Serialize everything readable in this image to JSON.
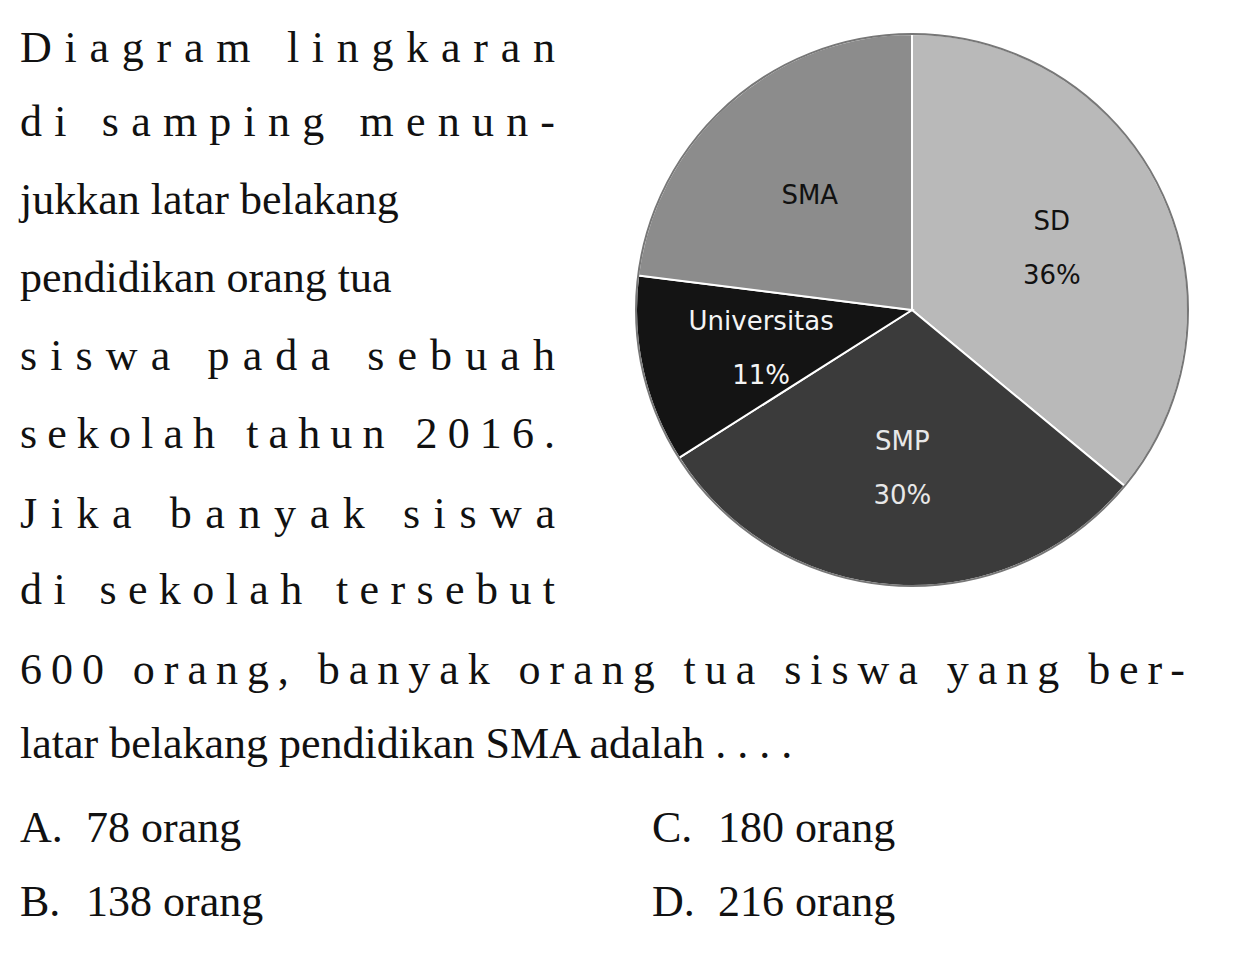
{
  "question": {
    "column_lines": [
      "Diagram lingkaran",
      "di samping menun-",
      "jukkan latar belakang",
      "pendidikan orang tua",
      "siswa pada sebuah",
      "sekolah tahun 2016.",
      "Jika banyak siswa",
      "di sekolah tersebut"
    ],
    "full_lines": [
      "600 orang, banyak orang tua siswa yang ber-",
      "latar belakang pendidikan SMA adalah . . . ."
    ]
  },
  "chart_data": {
    "type": "pie",
    "categories": [
      "SD",
      "SMP",
      "Universitas",
      "SMA"
    ],
    "values": [
      36,
      30,
      11,
      23
    ],
    "value_labels": [
      "36%",
      "30%",
      "11%",
      null
    ],
    "data_labels": true,
    "colors": [
      "#b9b9b9",
      "#3b3b3b",
      "#141414",
      "#8c8c8c"
    ]
  },
  "options": [
    {
      "letter": "A.",
      "text": "78 orang"
    },
    {
      "letter": "B.",
      "text": "138 orang"
    },
    {
      "letter": "C.",
      "text": "180 orang"
    },
    {
      "letter": "D.",
      "text": "216 orang"
    }
  ]
}
